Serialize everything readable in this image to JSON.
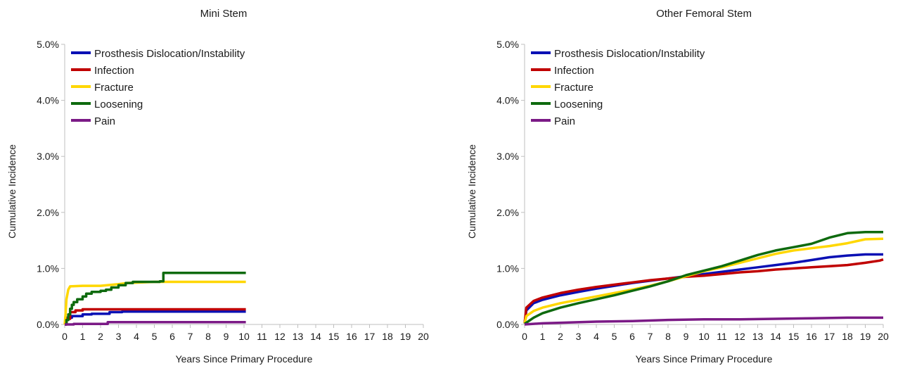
{
  "chart_data": [
    {
      "type": "line",
      "title": "Mini Stem",
      "xlabel": "Years Since Primary Procedure",
      "ylabel": "Cumulative Incidence",
      "xlim": [
        0,
        20
      ],
      "ylim": [
        0,
        5
      ],
      "x_ticks": [
        "0",
        "1",
        "2",
        "3",
        "4",
        "5",
        "6",
        "7",
        "8",
        "9",
        "10",
        "11",
        "12",
        "13",
        "14",
        "15",
        "16",
        "17",
        "18",
        "19",
        "20"
      ],
      "y_ticks": [
        "0.0%",
        "1.0%",
        "2.0%",
        "3.0%",
        "4.0%",
        "5.0%"
      ],
      "legend_position": "top-left",
      "series": [
        {
          "name": "Prosthesis Dislocation/Instability",
          "color": "#0a10b4",
          "step": true,
          "points": [
            [
              0,
              0
            ],
            [
              0.1,
              0.12
            ],
            [
              0.4,
              0.15
            ],
            [
              1.0,
              0.18
            ],
            [
              1.5,
              0.19
            ],
            [
              2.5,
              0.22
            ],
            [
              3.2,
              0.23
            ],
            [
              10.1,
              0.23
            ]
          ]
        },
        {
          "name": "Infection",
          "color": "#c00000",
          "step": true,
          "points": [
            [
              0,
              0
            ],
            [
              0.1,
              0.1
            ],
            [
              0.3,
              0.22
            ],
            [
              0.6,
              0.25
            ],
            [
              1.0,
              0.27
            ],
            [
              10.1,
              0.27
            ]
          ]
        },
        {
          "name": "Fracture",
          "color": "#ffd700",
          "step": false,
          "points": [
            [
              0,
              0
            ],
            [
              0.05,
              0.2
            ],
            [
              0.1,
              0.45
            ],
            [
              0.2,
              0.62
            ],
            [
              0.3,
              0.68
            ],
            [
              1.0,
              0.69
            ],
            [
              2.0,
              0.69
            ],
            [
              3.0,
              0.72
            ],
            [
              3.5,
              0.74
            ],
            [
              5.0,
              0.76
            ],
            [
              10.1,
              0.76
            ]
          ]
        },
        {
          "name": "Loosening",
          "color": "#0e6a0e",
          "step": true,
          "points": [
            [
              0,
              0
            ],
            [
              0.1,
              0.08
            ],
            [
              0.2,
              0.18
            ],
            [
              0.3,
              0.28
            ],
            [
              0.4,
              0.35
            ],
            [
              0.5,
              0.4
            ],
            [
              0.7,
              0.45
            ],
            [
              1.0,
              0.5
            ],
            [
              1.2,
              0.55
            ],
            [
              1.5,
              0.58
            ],
            [
              2.0,
              0.6
            ],
            [
              2.3,
              0.62
            ],
            [
              2.6,
              0.66
            ],
            [
              3.0,
              0.7
            ],
            [
              3.4,
              0.74
            ],
            [
              3.8,
              0.76
            ],
            [
              5.3,
              0.77
            ],
            [
              5.5,
              0.92
            ],
            [
              10.1,
              0.92
            ]
          ]
        },
        {
          "name": "Pain",
          "color": "#7b1a86",
          "step": true,
          "points": [
            [
              0,
              0
            ],
            [
              0.5,
              0.01
            ],
            [
              2.4,
              0.04
            ],
            [
              10.1,
              0.04
            ]
          ]
        }
      ]
    },
    {
      "type": "line",
      "title": "Other Femoral Stem",
      "xlabel": "Years Since Primary Procedure",
      "ylabel": "Cumulative Incidence",
      "xlim": [
        0,
        20
      ],
      "ylim": [
        0,
        5
      ],
      "x_ticks": [
        "0",
        "1",
        "2",
        "3",
        "4",
        "5",
        "6",
        "7",
        "8",
        "9",
        "10",
        "11",
        "12",
        "13",
        "14",
        "15",
        "16",
        "17",
        "18",
        "19",
        "20"
      ],
      "y_ticks": [
        "0.0%",
        "1.0%",
        "2.0%",
        "3.0%",
        "4.0%",
        "5.0%"
      ],
      "legend_position": "top-left",
      "series": [
        {
          "name": "Prosthesis Dislocation/Instability",
          "color": "#0a10b4",
          "step": false,
          "points": [
            [
              0,
              0.02
            ],
            [
              0.1,
              0.25
            ],
            [
              0.5,
              0.38
            ],
            [
              1,
              0.44
            ],
            [
              2,
              0.52
            ],
            [
              3,
              0.58
            ],
            [
              4,
              0.64
            ],
            [
              5,
              0.69
            ],
            [
              6,
              0.74
            ],
            [
              7,
              0.78
            ],
            [
              8,
              0.82
            ],
            [
              9,
              0.86
            ],
            [
              10,
              0.9
            ],
            [
              11,
              0.94
            ],
            [
              12,
              0.98
            ],
            [
              13,
              1.02
            ],
            [
              14,
              1.06
            ],
            [
              15,
              1.1
            ],
            [
              16,
              1.15
            ],
            [
              17,
              1.2
            ],
            [
              18,
              1.23
            ],
            [
              19,
              1.25
            ],
            [
              20,
              1.25
            ]
          ]
        },
        {
          "name": "Infection",
          "color": "#c00000",
          "step": false,
          "points": [
            [
              0,
              0.02
            ],
            [
              0.1,
              0.3
            ],
            [
              0.5,
              0.42
            ],
            [
              1,
              0.48
            ],
            [
              2,
              0.56
            ],
            [
              3,
              0.62
            ],
            [
              4,
              0.67
            ],
            [
              5,
              0.71
            ],
            [
              6,
              0.75
            ],
            [
              7,
              0.79
            ],
            [
              8,
              0.82
            ],
            [
              9,
              0.85
            ],
            [
              10,
              0.87
            ],
            [
              11,
              0.9
            ],
            [
              12,
              0.93
            ],
            [
              13,
              0.95
            ],
            [
              14,
              0.98
            ],
            [
              15,
              1.0
            ],
            [
              16,
              1.02
            ],
            [
              17,
              1.04
            ],
            [
              18,
              1.06
            ],
            [
              19,
              1.1
            ],
            [
              19.8,
              1.14
            ],
            [
              20,
              1.16
            ]
          ]
        },
        {
          "name": "Fracture",
          "color": "#ffd700",
          "step": false,
          "points": [
            [
              0,
              0.02
            ],
            [
              0.1,
              0.15
            ],
            [
              0.5,
              0.24
            ],
            [
              1,
              0.3
            ],
            [
              2,
              0.38
            ],
            [
              3,
              0.44
            ],
            [
              4,
              0.5
            ],
            [
              5,
              0.56
            ],
            [
              6,
              0.62
            ],
            [
              7,
              0.69
            ],
            [
              8,
              0.77
            ],
            [
              9,
              0.86
            ],
            [
              10,
              0.95
            ],
            [
              11,
              1.02
            ],
            [
              12,
              1.1
            ],
            [
              13,
              1.18
            ],
            [
              14,
              1.26
            ],
            [
              15,
              1.32
            ],
            [
              16,
              1.36
            ],
            [
              17,
              1.4
            ],
            [
              18,
              1.45
            ],
            [
              19,
              1.52
            ],
            [
              20,
              1.53
            ]
          ]
        },
        {
          "name": "Loosening",
          "color": "#0e6a0e",
          "step": false,
          "points": [
            [
              0,
              0.01
            ],
            [
              0.5,
              0.12
            ],
            [
              1,
              0.2
            ],
            [
              2,
              0.3
            ],
            [
              3,
              0.38
            ],
            [
              4,
              0.45
            ],
            [
              5,
              0.52
            ],
            [
              6,
              0.6
            ],
            [
              7,
              0.68
            ],
            [
              8,
              0.77
            ],
            [
              9,
              0.88
            ],
            [
              10,
              0.96
            ],
            [
              11,
              1.04
            ],
            [
              12,
              1.14
            ],
            [
              13,
              1.24
            ],
            [
              14,
              1.32
            ],
            [
              15,
              1.38
            ],
            [
              16,
              1.44
            ],
            [
              17,
              1.55
            ],
            [
              18,
              1.63
            ],
            [
              19,
              1.65
            ],
            [
              20,
              1.65
            ]
          ]
        },
        {
          "name": "Pain",
          "color": "#7b1a86",
          "step": false,
          "points": [
            [
              0,
              0
            ],
            [
              1,
              0.02
            ],
            [
              2,
              0.03
            ],
            [
              4,
              0.05
            ],
            [
              6,
              0.06
            ],
            [
              8,
              0.08
            ],
            [
              10,
              0.09
            ],
            [
              12,
              0.09
            ],
            [
              14,
              0.1
            ],
            [
              16,
              0.11
            ],
            [
              18,
              0.12
            ],
            [
              20,
              0.12
            ]
          ]
        }
      ]
    }
  ]
}
